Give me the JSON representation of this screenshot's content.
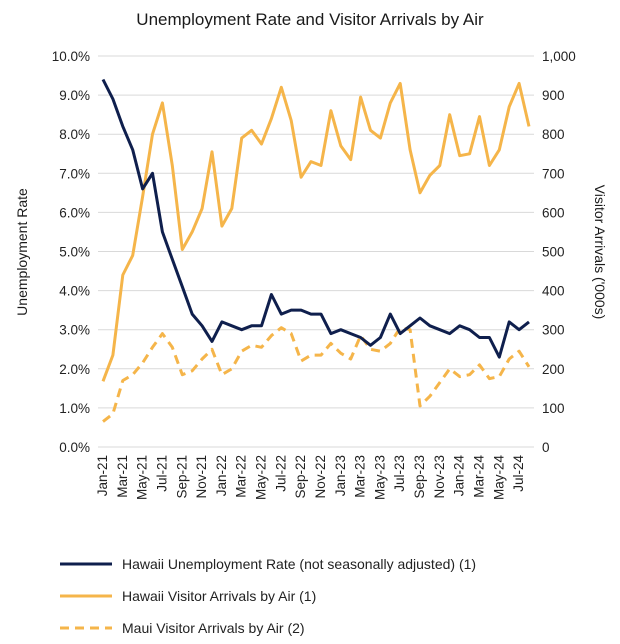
{
  "chart_data": {
    "type": "line",
    "title": "Unemployment Rate and Visitor Arrivals by Air",
    "ylabel_left": "Unemployment Rate",
    "ylabel_right": "Visitor Arrivals ('000s)",
    "y_left_ticks": [
      "0.0%",
      "1.0%",
      "2.0%",
      "3.0%",
      "4.0%",
      "5.0%",
      "6.0%",
      "7.0%",
      "8.0%",
      "9.0%",
      "10.0%"
    ],
    "y_right_ticks": [
      "0",
      "100",
      "200",
      "300",
      "400",
      "500",
      "600",
      "700",
      "800",
      "900",
      "1,000"
    ],
    "ylim_left": [
      0,
      10
    ],
    "ylim_right": [
      0,
      1000
    ],
    "x": [
      "Jan-21",
      "Feb-21",
      "Mar-21",
      "Apr-21",
      "May-21",
      "Jun-21",
      "Jul-21",
      "Aug-21",
      "Sep-21",
      "Oct-21",
      "Nov-21",
      "Dec-21",
      "Jan-22",
      "Feb-22",
      "Mar-22",
      "Apr-22",
      "May-22",
      "Jun-22",
      "Jul-22",
      "Aug-22",
      "Sep-22",
      "Oct-22",
      "Nov-22",
      "Dec-22",
      "Jan-23",
      "Feb-23",
      "Mar-23",
      "Apr-23",
      "May-23",
      "Jun-23",
      "Jul-23",
      "Aug-23",
      "Sep-23",
      "Oct-23",
      "Nov-23",
      "Dec-23",
      "Jan-24",
      "Feb-24",
      "Mar-24",
      "Apr-24",
      "May-24",
      "Jun-24",
      "Jul-24",
      "Aug-24"
    ],
    "x_tick_labels": [
      "Jan-21",
      "Mar-21",
      "May-21",
      "Jul-21",
      "Sep-21",
      "Nov-21",
      "Jan-22",
      "Mar-22",
      "May-22",
      "Jul-22",
      "Sep-22",
      "Nov-22",
      "Jan-23",
      "Mar-23",
      "May-23",
      "Jul-23",
      "Sep-23",
      "Nov-23",
      "Jan-24",
      "Mar-24",
      "May-24",
      "Jul-24"
    ],
    "series": [
      {
        "name": "Hawaii Unemployment Rate (not seasonally adjusted) (1)",
        "axis": "left",
        "color": "#0f1f4d",
        "style": "solid",
        "values": [
          9.4,
          8.9,
          8.2,
          7.6,
          6.6,
          7.0,
          5.5,
          4.8,
          4.1,
          3.4,
          3.1,
          2.7,
          3.2,
          3.1,
          3.0,
          3.1,
          3.1,
          3.9,
          3.4,
          3.5,
          3.5,
          3.4,
          3.4,
          2.9,
          3.0,
          2.9,
          2.8,
          2.6,
          2.8,
          3.4,
          2.9,
          3.1,
          3.3,
          3.1,
          3.0,
          2.9,
          3.1,
          3.0,
          2.8,
          2.8,
          2.3,
          3.2,
          3.0,
          3.2
        ]
      },
      {
        "name": "Hawaii Visitor Arrivals by Air (1)",
        "axis": "right",
        "color": "#f5b54a",
        "style": "solid",
        "values": [
          168,
          235,
          440,
          490,
          640,
          800,
          880,
          720,
          505,
          550,
          610,
          755,
          565,
          610,
          790,
          810,
          775,
          840,
          920,
          835,
          690,
          730,
          720,
          860,
          770,
          735,
          895,
          810,
          790,
          880,
          930,
          760,
          650,
          695,
          720,
          850,
          745,
          750,
          845,
          720,
          760,
          870,
          930,
          820
        ]
      },
      {
        "name": "Maui Visitor Arrivals by Air (2)",
        "axis": "right",
        "color": "#f5b54a",
        "style": "dashed",
        "values": [
          65,
          85,
          170,
          185,
          215,
          255,
          290,
          255,
          185,
          195,
          225,
          250,
          185,
          200,
          245,
          260,
          255,
          285,
          305,
          290,
          220,
          235,
          235,
          265,
          240,
          225,
          285,
          250,
          245,
          265,
          305,
          300,
          105,
          130,
          165,
          200,
          180,
          185,
          210,
          175,
          180,
          225,
          245,
          205
        ]
      }
    ]
  }
}
